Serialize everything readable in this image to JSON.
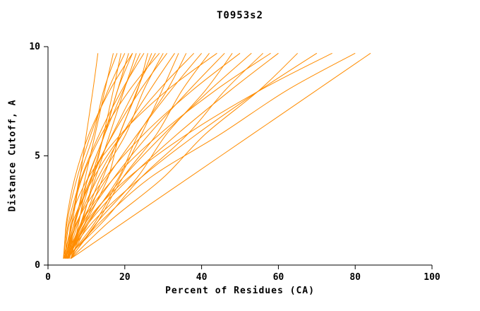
{
  "chart_data": {
    "type": "line",
    "title": "T0953s2",
    "xlabel": "Percent of Residues (CA)",
    "ylabel": "Distance Cutoff, A",
    "xlim": [
      0,
      100
    ],
    "ylim": [
      0,
      10
    ],
    "x_ticks": [
      0,
      20,
      40,
      60,
      80,
      100
    ],
    "y_ticks": [
      0,
      5,
      10
    ],
    "grid": false,
    "legend": null,
    "line_color": "#ff8c00",
    "axis_color": "#000000",
    "y_levels": [
      0.3,
      2,
      4,
      6,
      8,
      9.7
    ],
    "series": [
      {
        "x": [
          4.0,
          6.3,
          8.3,
          10.0,
          11.7,
          13
        ]
      },
      {
        "x": [
          5.0,
          7.2,
          9.7,
          12.3,
          14.8,
          17
        ]
      },
      {
        "x": [
          4.5,
          6.4,
          8.2,
          11.9,
          14.5,
          18
        ]
      },
      {
        "x": [
          5.5,
          8.9,
          11.9,
          14.5,
          17.0,
          19
        ]
      },
      {
        "x": [
          4.0,
          5.0,
          7.6,
          11.2,
          15.6,
          20
        ]
      },
      {
        "x": [
          5.0,
          7.9,
          11.3,
          14.7,
          18.1,
          21
        ]
      },
      {
        "x": [
          6.0,
          8.1,
          10.4,
          14.8,
          18.1,
          22
        ]
      },
      {
        "x": [
          4.2,
          4.8,
          7.0,
          10.7,
          16.1,
          22
        ]
      },
      {
        "x": [
          5.5,
          8.7,
          12.4,
          16.1,
          19.8,
          23
        ]
      },
      {
        "x": [
          4.8,
          6.9,
          10.5,
          14.8,
          19.6,
          24
        ]
      },
      {
        "x": [
          4.0,
          5.4,
          8.7,
          13.4,
          19.2,
          25
        ]
      },
      {
        "x": [
          5.0,
          10.0,
          15.6,
          18.7,
          23.3,
          26
        ]
      },
      {
        "x": [
          6.0,
          9.8,
          14.3,
          18.7,
          23.2,
          27
        ]
      },
      {
        "x": [
          4.5,
          7.0,
          11.5,
          16.8,
          22.6,
          28
        ]
      },
      {
        "x": [
          5.2,
          6.0,
          8.9,
          14.0,
          21.2,
          29
        ]
      },
      {
        "x": [
          4.0,
          9.2,
          13.7,
          20.3,
          24.9,
          30
        ]
      },
      {
        "x": [
          5.5,
          7.2,
          11.2,
          17.0,
          24.0,
          31
        ]
      },
      {
        "x": [
          4.6,
          7.7,
          13.0,
          19.4,
          26.5,
          33
        ]
      },
      {
        "x": [
          5.0,
          12.4,
          18.7,
          24.4,
          29.7,
          34
        ]
      },
      {
        "x": [
          6.0,
          10.8,
          18.4,
          23.6,
          31.0,
          36
        ]
      },
      {
        "x": [
          4.3,
          6.5,
          11.9,
          19.4,
          28.8,
          38
        ]
      },
      {
        "x": [
          5.0,
          8.8,
          15.4,
          23.3,
          32.0,
          40
        ]
      },
      {
        "x": [
          5.8,
          13.0,
          19.5,
          28.3,
          34.9,
          42
        ]
      },
      {
        "x": [
          4.4,
          5.7,
          10.5,
          19.0,
          31.0,
          44
        ]
      },
      {
        "x": [
          5.0,
          9.4,
          17.2,
          26.4,
          36.7,
          46
        ]
      },
      {
        "x": [
          6.0,
          13.0,
          23.2,
          30.9,
          41.0,
          48
        ]
      },
      {
        "x": [
          4.7,
          7.6,
          14.9,
          25.0,
          37.6,
          50
        ]
      },
      {
        "x": [
          5.3,
          10.5,
          19.5,
          30.2,
          42.1,
          53
        ]
      },
      {
        "x": [
          4.5,
          14.4,
          24.2,
          36.4,
          46.1,
          56
        ]
      },
      {
        "x": [
          5.5,
          8.9,
          17.3,
          29.1,
          43.6,
          58
        ]
      },
      {
        "x": [
          5.0,
          10.9,
          21.3,
          33.7,
          47.5,
          60
        ]
      },
      {
        "x": [
          6.0,
          16.0,
          30.0,
          41.0,
          55.0,
          65
        ]
      },
      {
        "x": [
          4.8,
          11.8,
          24.2,
          38.8,
          55.1,
          70
        ]
      },
      {
        "x": [
          5.5,
          10.0,
          20.9,
          36.3,
          55.2,
          74
        ]
      },
      {
        "x": [
          5.0,
          13.8,
          26.6,
          45.0,
          62.2,
          80
        ]
      },
      {
        "x": [
          6.0,
          20.1,
          36.7,
          53.3,
          69.9,
          84
        ]
      }
    ]
  }
}
